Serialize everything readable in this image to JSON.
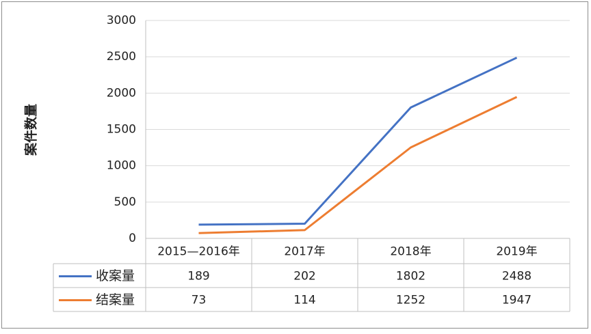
{
  "chart_data": {
    "type": "line",
    "y_label": "案件数量",
    "categories": [
      "2015—2016年",
      "2017年",
      "2018年",
      "2019年"
    ],
    "series": [
      {
        "name": "收案量",
        "color": "#4472c4",
        "values": [
          189,
          202,
          1802,
          2488
        ]
      },
      {
        "name": "结案量",
        "color": "#ed7d31",
        "values": [
          73,
          114,
          1252,
          1947
        ]
      }
    ],
    "ylim": [
      0,
      3000
    ],
    "yticks": [
      0,
      500,
      1000,
      1500,
      2000,
      2500,
      3000
    ],
    "grid": true
  }
}
